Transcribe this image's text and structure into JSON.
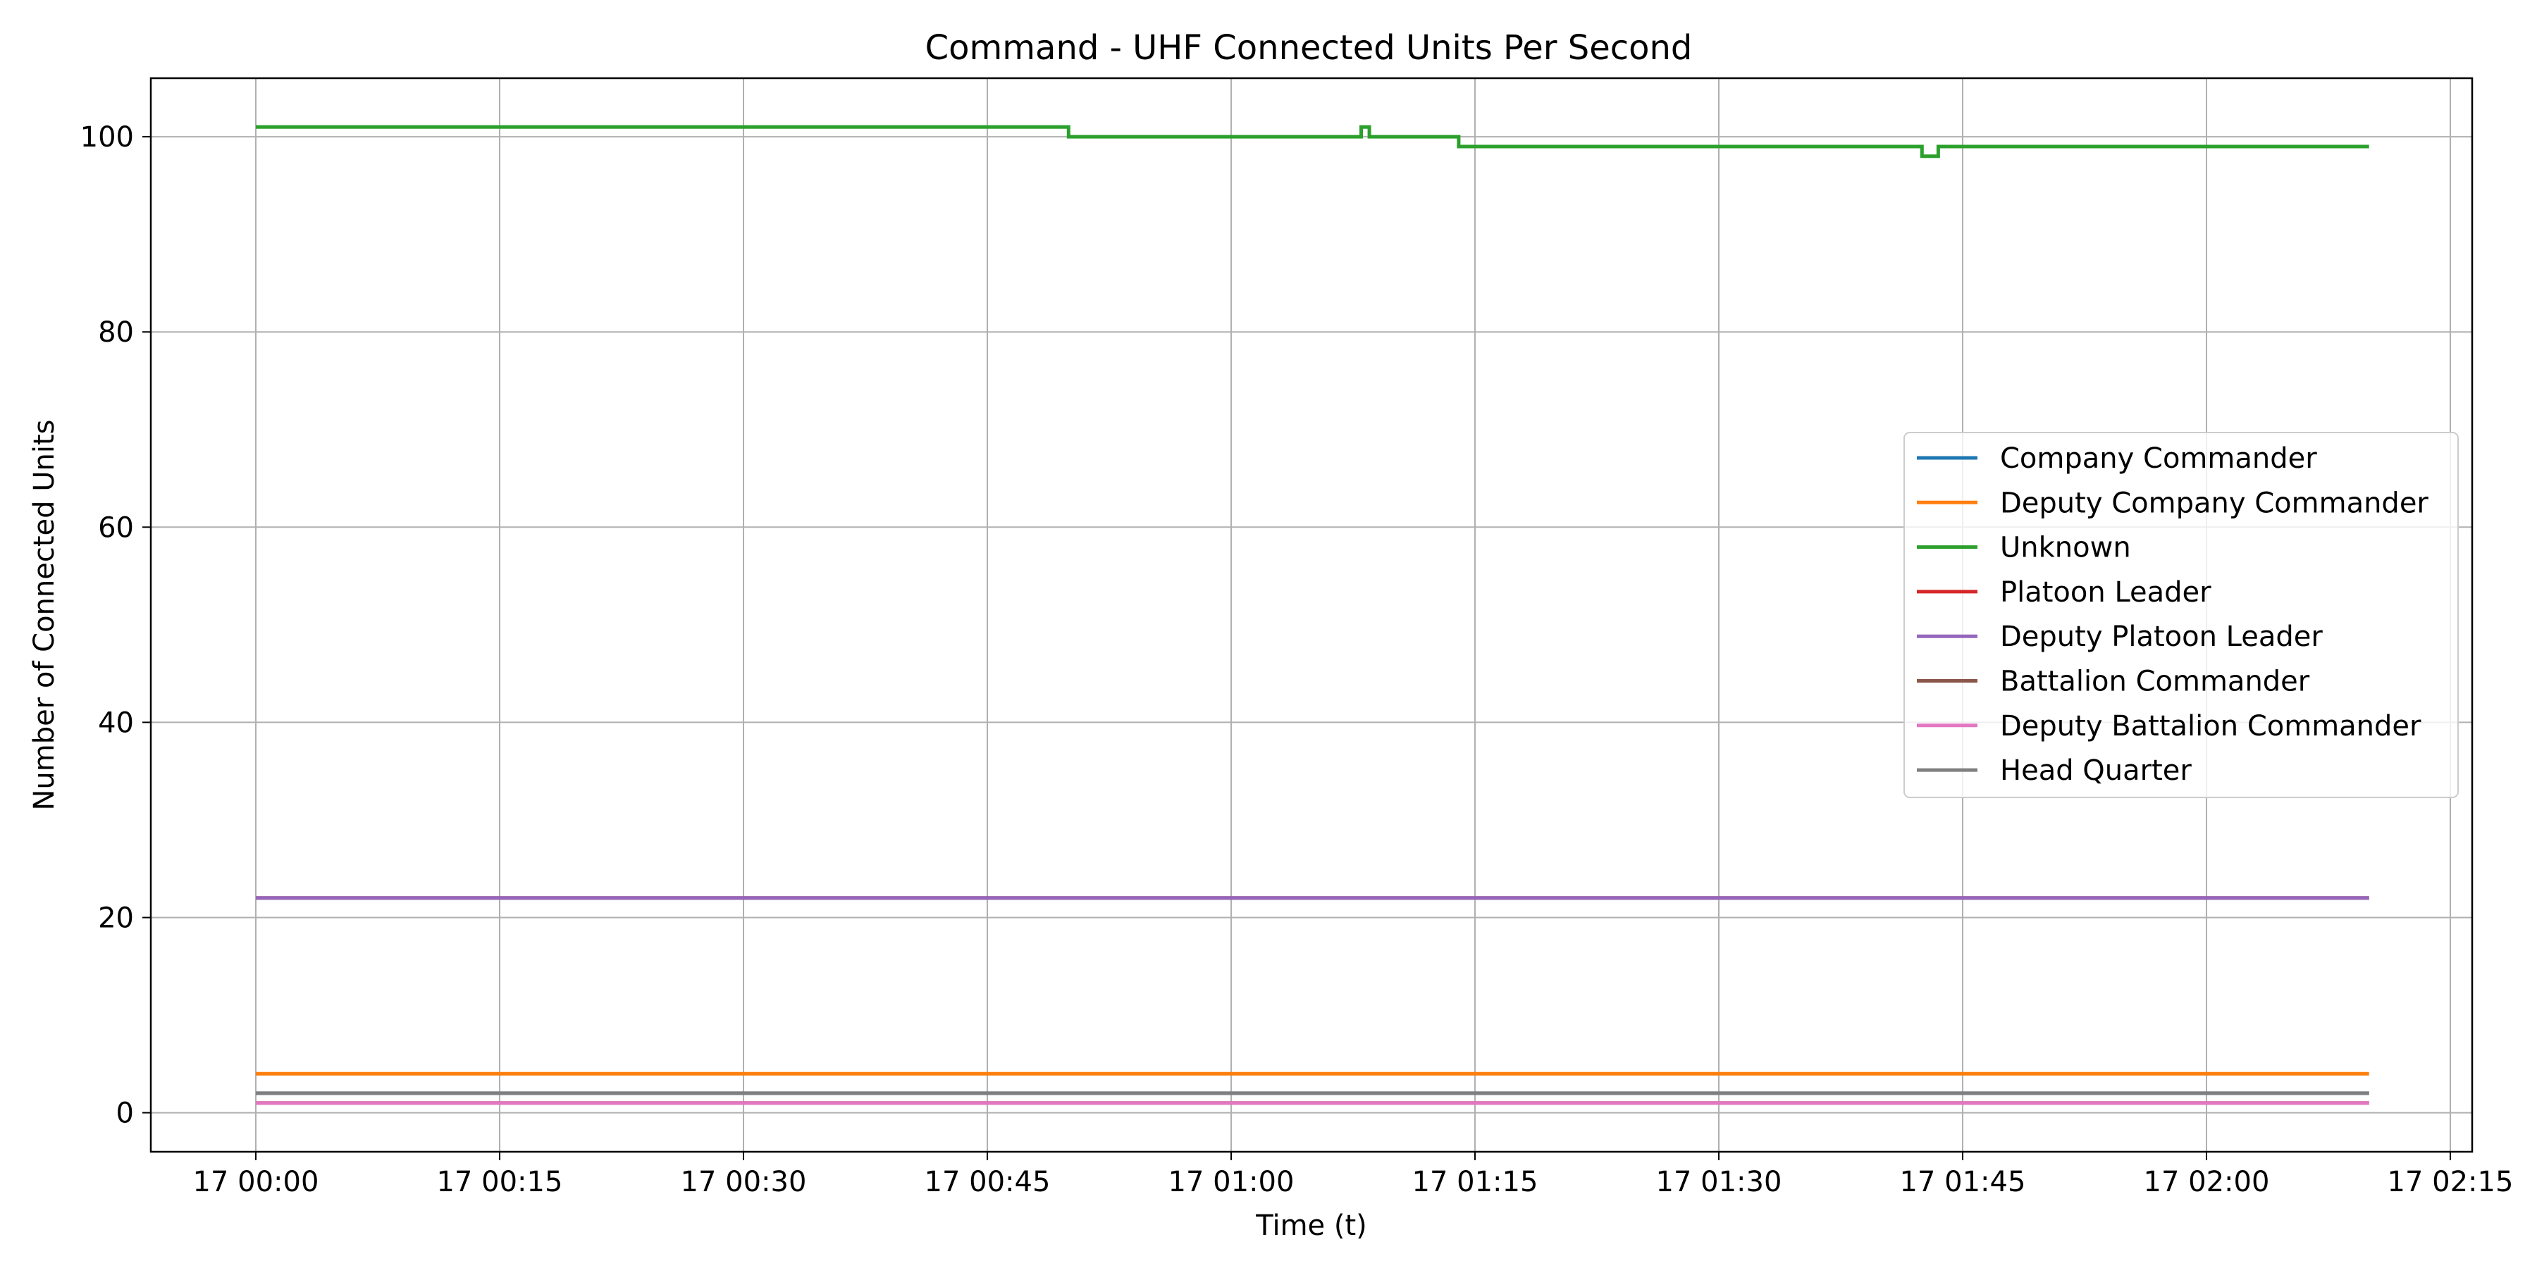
{
  "chart_data": {
    "type": "line",
    "title": "Command - UHF Connected Units Per Second",
    "xlabel": "Time (t)",
    "ylabel": "Number of Connected Units",
    "x_axis": {
      "unit": "time",
      "ticks": [
        "17 00:00",
        "17 00:15",
        "17 00:30",
        "17 00:45",
        "17 01:00",
        "17 01:15",
        "17 01:30",
        "17 01:45",
        "17 02:00",
        "17 02:15"
      ],
      "xlim": [
        "17 00:00",
        "17 02:15"
      ]
    },
    "y_axis": {
      "ticks": [
        0,
        20,
        40,
        60,
        80,
        100
      ],
      "ylim": [
        -4,
        106
      ]
    },
    "grid": true,
    "legend": "center-right",
    "series": [
      {
        "name": "Company Commander",
        "color": "#1f77b4",
        "points": [
          [
            "17 00:00",
            2
          ],
          [
            "17 02:10",
            2
          ]
        ]
      },
      {
        "name": "Deputy Company Commander",
        "color": "#ff7f0e",
        "points": [
          [
            "17 00:00",
            4
          ],
          [
            "17 02:10",
            4
          ]
        ]
      },
      {
        "name": "Unknown",
        "color": "#2ca02c",
        "points": [
          [
            "17 00:00",
            101
          ],
          [
            "17 00:50",
            101
          ],
          [
            "17 00:50",
            100
          ],
          [
            "17 01:08",
            100
          ],
          [
            "17 01:08",
            101
          ],
          [
            "17 01:08:30",
            101
          ],
          [
            "17 01:08:30",
            100
          ],
          [
            "17 01:14",
            100
          ],
          [
            "17 01:14",
            99
          ],
          [
            "17 01:42:30",
            99
          ],
          [
            "17 01:42:30",
            98
          ],
          [
            "17 01:43:30",
            98
          ],
          [
            "17 01:43:30",
            99
          ],
          [
            "17 02:10",
            99
          ]
        ]
      },
      {
        "name": "Platoon Leader",
        "color": "#d62728",
        "points": [
          [
            "17 00:00",
            22
          ],
          [
            "17 02:10",
            22
          ]
        ]
      },
      {
        "name": "Deputy Platoon Leader",
        "color": "#9467bd",
        "points": [
          [
            "17 00:00",
            22
          ],
          [
            "17 02:10",
            22
          ]
        ]
      },
      {
        "name": "Battalion Commander",
        "color": "#8c564b",
        "points": [
          [
            "17 00:00",
            1
          ],
          [
            "17 02:10",
            1
          ]
        ]
      },
      {
        "name": "Deputy Battalion Commander",
        "color": "#e377c2",
        "points": [
          [
            "17 00:00",
            1
          ],
          [
            "17 02:10",
            1
          ]
        ]
      },
      {
        "name": "Head Quarter",
        "color": "#7f7f7f",
        "points": [
          [
            "17 00:00",
            2
          ],
          [
            "17 02:10",
            2
          ]
        ]
      }
    ]
  }
}
